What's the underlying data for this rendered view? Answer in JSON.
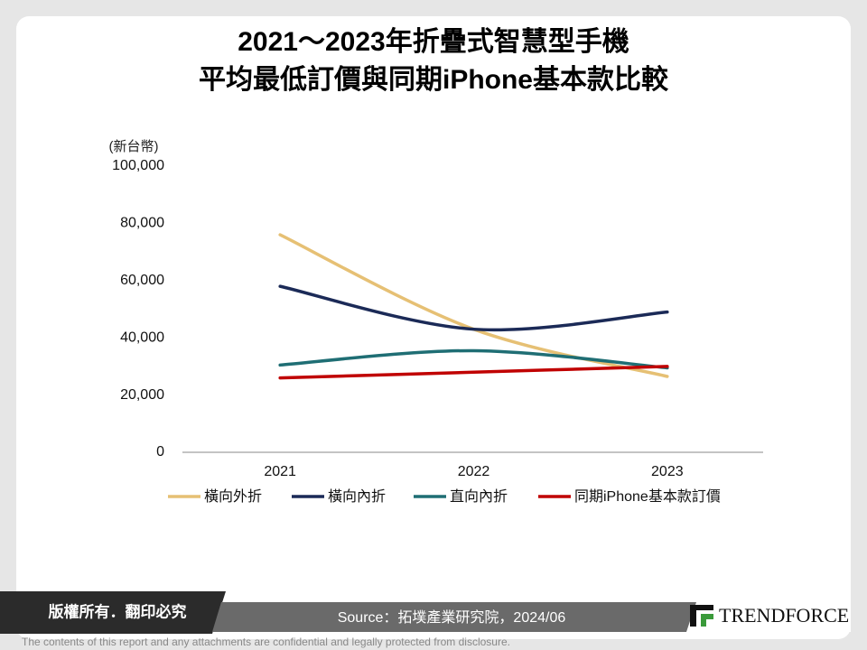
{
  "chart_data": {
    "type": "line",
    "title": [
      "2021～2023年折疊式智慧型手機",
      "平均最低訂價與同期iPhone基本款比較"
    ],
    "ylabel": "(新台幣)",
    "categories": [
      "2021",
      "2022",
      "2023"
    ],
    "series": [
      {
        "name": "橫向外折",
        "color": "#e6c074",
        "values": [
          76000,
          43000,
          26500
        ]
      },
      {
        "name": "橫向內折",
        "color": "#1b2a57",
        "values": [
          58000,
          43000,
          49000
        ]
      },
      {
        "name": "直向內折",
        "color": "#1f6e74",
        "values": [
          30500,
          35500,
          29500
        ]
      },
      {
        "name": "同期iPhone基本款訂價",
        "color": "#c00000",
        "values": [
          26000,
          28000,
          30000
        ]
      }
    ],
    "ylim": [
      0,
      100000
    ],
    "yticks": [
      0,
      {
        "value": 20000,
        "label": "20,000"
      },
      {
        "value": 40000,
        "label": "40,000"
      },
      {
        "value": 60000,
        "label": "60,000"
      },
      {
        "value": 80000,
        "label": "80,000"
      },
      {
        "value": 100000,
        "label": "100,000"
      }
    ],
    "smooth": true
  },
  "footer": {
    "copyright": "版權所有．翻印必究",
    "source": "Source：拓墣產業研究院，2024/06",
    "brand": "TRENDFORCE",
    "disclaimer": "The contents of this report and any attachments are confidential and legally protected from disclosure."
  }
}
